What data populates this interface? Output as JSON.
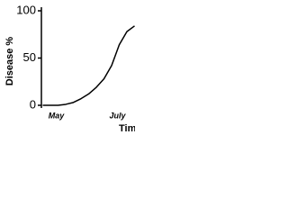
{
  "chart_data": {
    "type": "line",
    "y_label": "Disease %",
    "x_label": "Time",
    "categories": [
      null,
      null,
      "May",
      null,
      null,
      null,
      null,
      null,
      null,
      null,
      "July",
      null,
      null
    ],
    "values": [
      0,
      0,
      0,
      1,
      3,
      7,
      12,
      19,
      28,
      42,
      64,
      78,
      84
    ],
    "color": "#000000",
    "ylim": [
      0,
      100
    ],
    "yticks": [
      0,
      50,
      100
    ]
  }
}
